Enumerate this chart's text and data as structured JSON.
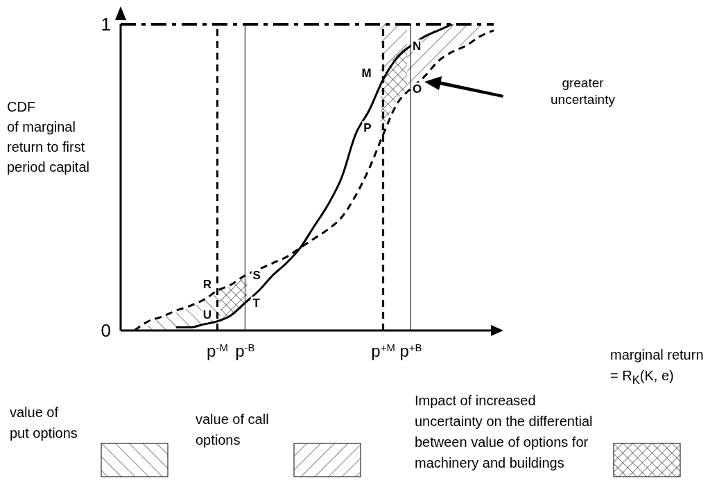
{
  "chart_data": {
    "type": "line",
    "ylabel": "CDF\nof marginal return to first period capital",
    "categories": [
      null,
      null,
      null,
      null,
      null,
      null,
      null,
      "p$^{-M}$",
      null,
      "p$^{-B}$",
      null,
      null,
      null,
      null,
      null,
      null,
      null,
      null,
      null,
      "p$^{+M}$",
      null,
      "p$^{+B}$",
      null,
      null,
      null,
      null,
      null,
      null
    ],
    "series": [
      {
        "color": "#000000",
        "line_style": "solid",
        "values": [
          null,
          null,
          null,
          null,
          0.01,
          0.01,
          0.02,
          0.03,
          0.05,
          0.09,
          0.13,
          0.18,
          0.22,
          0.27,
          0.34,
          0.41,
          0.5,
          0.64,
          0.72,
          0.82,
          0.89,
          0.93,
          0.96,
          0.98,
          1.0,
          null,
          null,
          null
        ]
      },
      {
        "name": "greater uncertainty",
        "color": "#000000",
        "line_style": "dashed",
        "values": [
          null,
          0.0,
          0.03,
          0.045,
          0.065,
          0.08,
          0.1,
          0.13,
          0.15,
          0.18,
          0.2,
          0.22,
          0.24,
          0.27,
          0.3,
          0.33,
          0.37,
          0.44,
          0.53,
          0.64,
          0.74,
          0.79,
          0.83,
          0.88,
          0.91,
          0.93,
          0.96,
          0.98
        ]
      }
    ],
    "ylim": [
      0,
      1
    ],
    "yticks": [
      0,
      1
    ],
    "ref_lines": [
      {
        "axis": "x",
        "value": "p$^{-M}$",
        "line_style": "dashed"
      },
      {
        "axis": "x",
        "value": "p$^{-B}$",
        "line_style": "solid"
      },
      {
        "axis": "x",
        "value": "p$^{+M}$",
        "line_style": "dashed"
      },
      {
        "axis": "x",
        "value": "p$^{+B}$",
        "line_style": "solid"
      },
      {
        "axis": "y",
        "value": 1,
        "line_style": "dashed"
      }
    ],
    "annotations": [
      {
        "text": "R",
        "x": "p$^{-M}$",
        "y": 0.13
      },
      {
        "text": "U",
        "x": "p$^{-M}$",
        "y": 0.03
      },
      {
        "text": "S",
        "x": "p$^{-B}$",
        "y": 0.18
      },
      {
        "text": "T",
        "x": "p$^{-B}$",
        "y": 0.09
      },
      {
        "text": "M",
        "x": "p$^{+M}$",
        "y": 0.82
      },
      {
        "text": "P",
        "x": "p$^{+M}$",
        "y": 0.64
      },
      {
        "text": "N",
        "x": "p$^{+B}$",
        "y": 0.93
      },
      {
        "text": "O",
        "x": "p$^{+B}$",
        "y": 0.79
      },
      "marginal return = R$_{K}$(K, e)",
      "value of put options",
      "value of call options",
      "Impact of increased uncertainty on the differential between value of options for machinery and buildings"
    ]
  }
}
